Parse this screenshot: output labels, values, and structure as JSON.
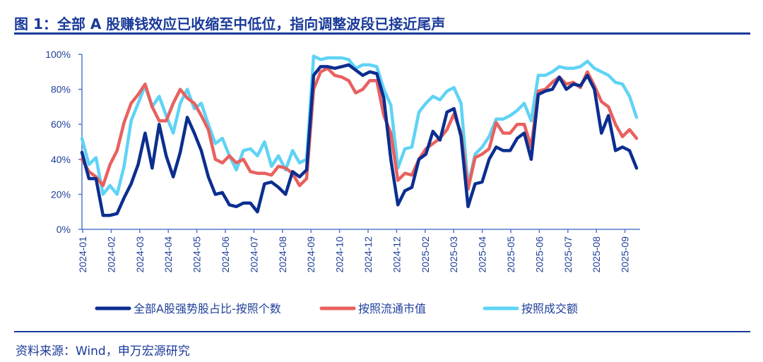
{
  "title": "图 1：全部 A 股赚钱效应已收缩至中低位，指向调整波段已接近尾声",
  "source": "资料来源：Wind，申万宏源研究",
  "chart_data": {
    "type": "line",
    "title": "",
    "xlabel": "",
    "ylabel": "",
    "ylim": [
      0,
      100
    ],
    "y_unit": "%",
    "y_ticks": [
      "0%",
      "20%",
      "40%",
      "60%",
      "80%",
      "100%"
    ],
    "x_tick_labels": [
      "2024-01",
      "2024-02",
      "2024-03",
      "2024-04",
      "2024-05",
      "2024-06",
      "2024-07",
      "2024-08",
      "2024-09",
      "2024-10",
      "2024-12",
      "2024-12",
      "2025-02",
      "2025-03",
      "2025-04",
      "2025-05",
      "2025-06",
      "2025-07",
      "2025-08",
      "2025-09"
    ],
    "grid": false,
    "legend_position": "bottom",
    "series": [
      {
        "name": "按照成交额",
        "color": "#5fd3f5",
        "values": [
          52,
          37,
          41,
          20,
          25,
          20,
          36,
          62,
          72,
          82,
          70,
          76,
          65,
          55,
          72,
          80,
          69,
          72,
          60,
          49,
          52,
          42,
          34,
          45,
          46,
          42,
          50,
          36,
          42,
          34,
          45,
          38,
          40,
          99,
          97,
          98,
          98,
          98,
          97,
          92,
          94,
          94,
          93,
          80,
          71,
          35,
          46,
          47,
          67,
          72,
          76,
          74,
          79,
          81,
          72,
          25,
          43,
          47,
          53,
          63,
          63,
          65,
          68,
          72,
          62,
          88,
          88,
          90,
          93,
          92,
          92,
          93,
          96,
          92,
          90,
          88,
          84,
          83,
          76,
          64
        ]
      },
      {
        "name": "按照流通市值",
        "color": "#e8615f",
        "values": [
          40,
          33,
          30,
          25,
          37,
          45,
          61,
          72,
          77,
          83,
          70,
          62,
          62,
          72,
          80,
          75,
          72,
          65,
          57,
          40,
          38,
          42,
          38,
          40,
          33,
          32,
          32,
          31,
          36,
          35,
          32,
          25,
          29,
          80,
          90,
          92,
          88,
          87,
          85,
          78,
          80,
          85,
          85,
          65,
          55,
          28,
          32,
          31,
          40,
          46,
          49,
          52,
          57,
          66,
          55,
          23,
          41,
          43,
          46,
          61,
          55,
          55,
          60,
          60,
          47,
          79,
          80,
          84,
          87,
          83,
          84,
          81,
          90,
          82,
          73,
          70,
          60,
          53,
          57,
          52
        ]
      },
      {
        "name": "全部A股强势股占比-按照个数",
        "color": "#0b2e8f",
        "values": [
          44,
          29,
          29,
          8,
          8,
          9,
          18,
          26,
          37,
          55,
          35,
          60,
          42,
          30,
          44,
          64,
          55,
          45,
          30,
          20,
          21,
          14,
          13,
          15,
          15,
          10,
          26,
          27,
          24,
          20,
          33,
          30,
          34,
          88,
          93,
          93,
          92,
          93,
          94,
          91,
          88,
          90,
          89,
          75,
          40,
          14,
          22,
          24,
          40,
          43,
          56,
          51,
          67,
          69,
          53,
          13,
          26,
          27,
          40,
          47,
          45,
          45,
          52,
          55,
          40,
          77,
          79,
          80,
          87,
          80,
          83,
          82,
          88,
          80,
          55,
          65,
          45,
          47,
          45,
          35
        ]
      }
    ],
    "legend_order": [
      2,
      1,
      0
    ]
  }
}
